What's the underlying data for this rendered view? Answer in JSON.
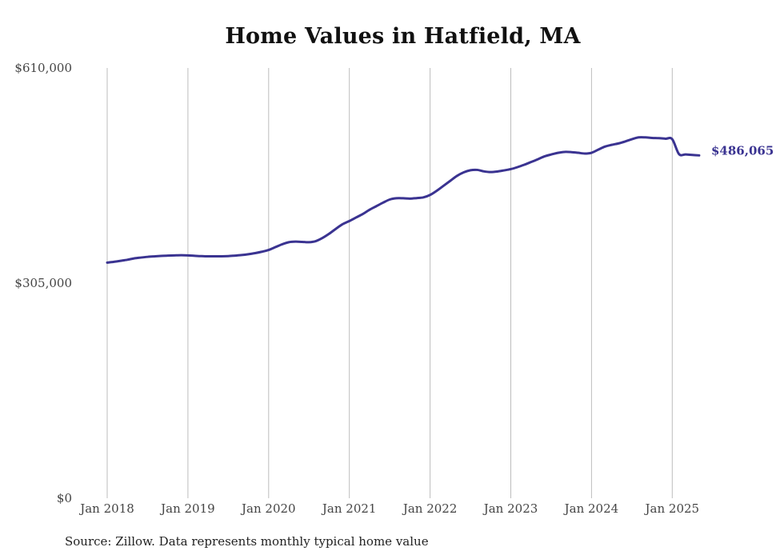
{
  "chart_data": {
    "type": "line",
    "title": "Home Values in Hatfield, MA",
    "source": "Source: Zillow. Data represents monthly typical home value",
    "xlabel": "",
    "ylabel": "",
    "ylim": [
      0,
      610000
    ],
    "yticks": [
      {
        "value": 0,
        "label": "$0"
      },
      {
        "value": 305000,
        "label": "$305,000"
      },
      {
        "value": 610000,
        "label": "$610,000"
      }
    ],
    "xlim": [
      "2018-01",
      "2025-05"
    ],
    "xticks": [
      {
        "date": "2018-01",
        "label": "Jan 2018"
      },
      {
        "date": "2019-01",
        "label": "Jan 2019"
      },
      {
        "date": "2020-01",
        "label": "Jan 2020"
      },
      {
        "date": "2021-01",
        "label": "Jan 2021"
      },
      {
        "date": "2022-01",
        "label": "Jan 2022"
      },
      {
        "date": "2023-01",
        "label": "Jan 2023"
      },
      {
        "date": "2024-01",
        "label": "Jan 2024"
      },
      {
        "date": "2025-01",
        "label": "Jan 2025"
      }
    ],
    "grid": "vertical",
    "line_color": "#3a3391",
    "end_label": "$486,065",
    "series": [
      {
        "x": [
          "2018-01",
          "2018-02",
          "2018-03",
          "2018-04",
          "2018-05",
          "2018-06",
          "2018-07",
          "2018-08",
          "2018-09",
          "2018-10",
          "2018-11",
          "2018-12",
          "2019-01",
          "2019-02",
          "2019-03",
          "2019-04",
          "2019-05",
          "2019-06",
          "2019-07",
          "2019-08",
          "2019-09",
          "2019-10",
          "2019-11",
          "2019-12",
          "2020-01",
          "2020-02",
          "2020-03",
          "2020-04",
          "2020-05",
          "2020-06",
          "2020-07",
          "2020-08",
          "2020-09",
          "2020-10",
          "2020-11",
          "2020-12",
          "2021-01",
          "2021-02",
          "2021-03",
          "2021-04",
          "2021-05",
          "2021-06",
          "2021-07",
          "2021-08",
          "2021-09",
          "2021-10",
          "2021-11",
          "2021-12",
          "2022-01",
          "2022-02",
          "2022-03",
          "2022-04",
          "2022-05",
          "2022-06",
          "2022-07",
          "2022-08",
          "2022-09",
          "2022-10",
          "2022-11",
          "2022-12",
          "2023-01",
          "2023-02",
          "2023-03",
          "2023-04",
          "2023-05",
          "2023-06",
          "2023-07",
          "2023-08",
          "2023-09",
          "2023-10",
          "2023-11",
          "2023-12",
          "2024-01",
          "2024-02",
          "2024-03",
          "2024-04",
          "2024-05",
          "2024-06",
          "2024-07",
          "2024-08",
          "2024-09",
          "2024-10",
          "2024-11",
          "2024-12",
          "2025-01",
          "2025-02",
          "2025-03",
          "2025-04",
          "2025-05"
        ],
        "values": [
          334000,
          335200,
          336600,
          338100,
          340000,
          341200,
          342200,
          342900,
          343500,
          344000,
          344300,
          344500,
          344300,
          343700,
          343200,
          343000,
          343000,
          343000,
          343300,
          344000,
          344800,
          346000,
          347500,
          349500,
          352000,
          356000,
          360000,
          363000,
          363800,
          363400,
          363000,
          364500,
          369000,
          375000,
          382000,
          388500,
          393000,
          398000,
          403000,
          409000,
          414000,
          419000,
          423500,
          425300,
          425300,
          424800,
          425500,
          426500,
          430000,
          436000,
          443000,
          450000,
          457000,
          462000,
          465000,
          465500,
          463400,
          462400,
          463200,
          464800,
          466600,
          469400,
          472800,
          476600,
          480500,
          484600,
          487300,
          489700,
          491000,
          490700,
          489800,
          488700,
          489800,
          494200,
          498500,
          501000,
          503000,
          505800,
          509000,
          511600,
          511600,
          510800,
          510500,
          509700,
          509000,
          488000,
          487400,
          486700,
          486065
        ]
      }
    ]
  }
}
